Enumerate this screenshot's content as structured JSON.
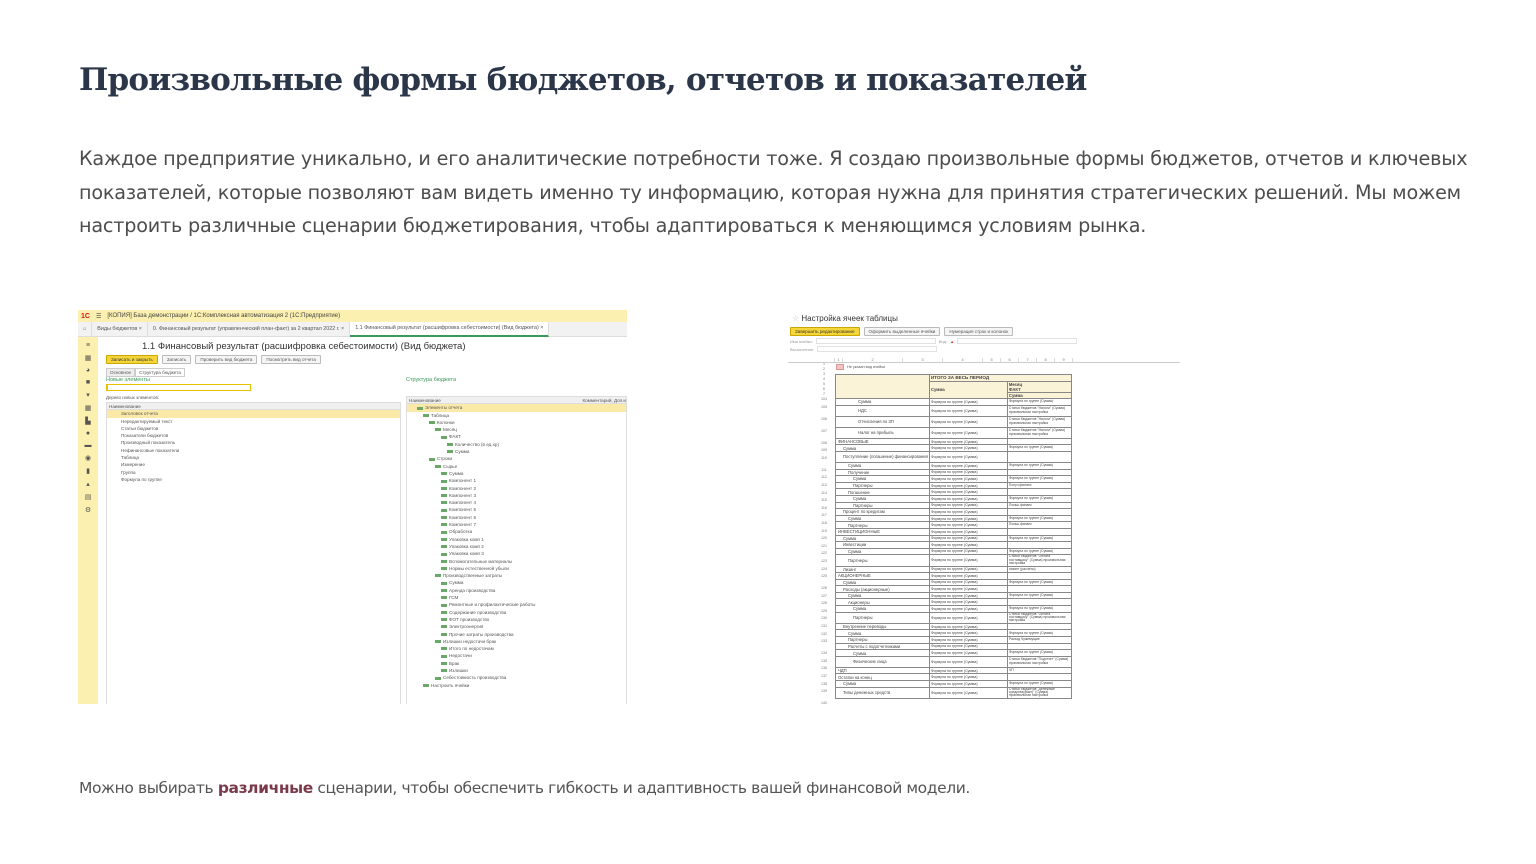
{
  "title": "Произвольные формы бюджетов, отчетов и показателей",
  "lead": "Каждое предприятие уникально, и его аналитические потребности тоже. Я создаю произвольные формы бюджетов, отчетов и ключевых показателей, которые позволяют вам видеть именно ту информацию, которая нужна для принятия стратегических решений. Мы можем настроить различные сценарии бюджетирования, чтобы адаптироваться к меняющимся условиям рынка.",
  "footer": {
    "before": "Можно выбирать ",
    "bold": "различные",
    "after": " сценарии, чтобы обеспечить гибкость и адаптивность вашей финансовой модели."
  },
  "colors": {
    "title": "#2b3649",
    "accent": "#7b3a4c",
    "app_yellow": "#fbf0b0",
    "button_yellow": "#f5d53a"
  },
  "shot1": {
    "logo": "1С",
    "window_title": "[КОПИЯ] База демонстрации / 1С:Комплексная автоматизация 2  (1С:Предприятие)",
    "tabs": [
      "Виды бюджетов ×",
      "0. Финансовый результат (управленческий план-факт) за 2 квартал 2022 г. ×",
      "1.1 Финансовый результат (расшифровка себестоимости) (Вид бюджета) ×"
    ],
    "heading": "1.1 Финансовый результат (расшифровка себестоимости) (Вид бюджета)",
    "buttons": [
      "Записать и закрыть",
      "Записать",
      "Проверить вид бюджета",
      "Посмотреть вид отчета"
    ],
    "subtabs": [
      "Основное",
      "Структура бюджета"
    ],
    "left_title": "Новые элементы",
    "search_value": "|",
    "left_caption": "Дерево новых элементов:",
    "left_header": "Наименование",
    "left_items": [
      "Заголовок отчета",
      "Нередактируемый текст",
      "Статьи бюджетов",
      "Показатели бюджетов",
      "Производный показатель",
      "Нефинансовые показатели",
      "Таблица",
      "Измерение",
      "Группа",
      "Формула по группе"
    ],
    "right_title": "Структура бюджета",
    "right_header": "Наименование",
    "right_header2": "Комментарий, Доп.и",
    "right_items": [
      [
        "Элементы отчета",
        1
      ],
      [
        "Таблица",
        2
      ],
      [
        "Колонки",
        3
      ],
      [
        "Месяц",
        4
      ],
      [
        "ФАКТ",
        5
      ],
      [
        "Количество (в ед.хр)",
        6
      ],
      [
        "Сумма",
        6
      ],
      [
        "Строки",
        3
      ],
      [
        "Сырье",
        4
      ],
      [
        "Сумма",
        5
      ],
      [
        "Компонент 1",
        5
      ],
      [
        "Компонент 2",
        5
      ],
      [
        "Компонент 3",
        5
      ],
      [
        "Компонент 4",
        5
      ],
      [
        "Компонент 5",
        5
      ],
      [
        "Компонент 6",
        5
      ],
      [
        "Компонент 7",
        5
      ],
      [
        "Обработка",
        5
      ],
      [
        "Упаковка комп 1",
        5
      ],
      [
        "Упаковка комп 2",
        5
      ],
      [
        "Упаковка комп 3",
        5
      ],
      [
        "Вспомогательные материалы",
        5
      ],
      [
        "Нормы естественной убыли",
        5
      ],
      [
        "Производственные затраты",
        4
      ],
      [
        "Сумма",
        5
      ],
      [
        "Аренда производства",
        5
      ],
      [
        "ГСМ",
        5
      ],
      [
        "Ремонтные и профилактические работы",
        5
      ],
      [
        "Содержание производства",
        5
      ],
      [
        "ФОТ производство",
        5
      ],
      [
        "Электроэнергия",
        5
      ],
      [
        "Прочие затраты производства",
        5
      ],
      [
        "Излишки недостачи брак",
        4
      ],
      [
        "Итого по недостачам",
        5
      ],
      [
        "Недостачи",
        5
      ],
      [
        "Брак",
        5
      ],
      [
        "Излишки",
        5
      ],
      [
        "Себестоимость производства",
        4
      ],
      [
        "Настроить ячейки",
        2
      ]
    ]
  },
  "shot2": {
    "heading": "Настройка ячеек таблицы",
    "buttons": [
      "Завершить редактирование",
      "Оформить выделенные ячейки",
      "Нумерация строк и колонок"
    ],
    "field_name": "Имя ячейки:",
    "field_kind": "Вид:",
    "field_calc": "Вычисление:",
    "col_numbers": [
      "1",
      "2",
      "3",
      "4",
      "5",
      "6",
      "7",
      "8",
      "9"
    ],
    "legend": "Не указан вид ячейки",
    "header_period": "ИТОГО ЗА ВЕСЬ ПЕРИОД",
    "header_sum": "Сумма",
    "header_month": "Месяц",
    "header_fact": "ФАКТ",
    "header_sum2": "Сумма",
    "rows": [
      [
        "104",
        "Сумма",
        4,
        "Формула по группе (Сумма)",
        "Формула по группе (Сумма)"
      ],
      [
        "105",
        "НДС",
        4,
        "Формула по группе (Сумма)",
        "Статья бюджетов \"Налоги\" (Сумма) произвольная настройка"
      ],
      [
        "106",
        "Отчисления по ЗП",
        4,
        "Формула по группе (Сумма)",
        "Статья бюджетов \"Налоги\" (Сумма) произвольная настройка"
      ],
      [
        "107",
        "Налог на прибыль",
        4,
        "Формула по группе (Сумма)",
        "Статья бюджетов \"Налоги\" (Сумма) произвольная настройка"
      ],
      [
        "108",
        "ФИНАНСОВЫЕ",
        0,
        "Формула по группе (Сумма)",
        ""
      ],
      [
        "109",
        "Сумма",
        1,
        "Формула по группе (Сумма)",
        "Формула по группе (Сумма)"
      ],
      [
        "110",
        "Поступление (погашение) финансирования",
        1,
        "Формула по группе (Сумма)",
        ""
      ],
      [
        "111",
        "Сумма",
        2,
        "Формула по группе (Сумма)",
        "Формула по группе (Сумма)"
      ],
      [
        "112",
        "Получение",
        2,
        "Формула по группе (Сумма)",
        ""
      ],
      [
        "113",
        "Сумма",
        3,
        "Формула по группе (Сумма)",
        "Формула по группе (Сумма)"
      ],
      [
        "114",
        "Партнеры",
        3,
        "Формула по группе (Сумма)",
        "Получ.финанс"
      ],
      [
        "115",
        "Погашение",
        2,
        "Формула по группе (Сумма)",
        ""
      ],
      [
        "116",
        "Сумма",
        3,
        "Формула по группе (Сумма)",
        "Формула по группе (Сумма)"
      ],
      [
        "117",
        "Партнеры",
        3,
        "Формула по группе (Сумма)",
        "Погаш.финанс"
      ],
      [
        "118",
        "Процент по кредитам",
        1,
        "Формула по группе (Сумма)",
        ""
      ],
      [
        "119",
        "Сумма",
        2,
        "Формула по группе (Сумма)",
        "Формула по группе (Сумма)"
      ],
      [
        "120",
        "Партнеры",
        2,
        "Формула по группе (Сумма)",
        "Погаш.финанс"
      ],
      [
        "121",
        "ИНВЕСТИЦИОННЫЕ",
        0,
        "Формула по группе (Сумма)",
        ""
      ],
      [
        "122",
        "Сумма",
        1,
        "Формула по группе (Сумма)",
        "Формула по группе (Сумма)"
      ],
      [
        "123",
        "Инвестиции",
        1,
        "Формула по группе (Сумма)",
        ""
      ],
      [
        "124",
        "Сумма",
        2,
        "Формула по группе (Сумма)",
        "Формула по группе (Сумма)"
      ],
      [
        "125",
        "Партнеры",
        2,
        "Формула по группе (Сумма)",
        "Статья бюджетов \"Оплата поставщику\" (Сумма) произвольная настройка"
      ],
      [
        "126",
        "Лизинг",
        1,
        "Формула по группе (Сумма)",
        "лизинг (расчеты)"
      ],
      [
        "127",
        "АКЦИОНЕРНЫЕ",
        0,
        "Формула по группе (Сумма)",
        ""
      ],
      [
        "128",
        "Сумма",
        1,
        "Формула по группе (Сумма)",
        "Формула по группе (Сумма)"
      ],
      [
        "129",
        "Расходы (акционерные)",
        1,
        "Формула по группе (Сумма)",
        ""
      ],
      [
        "130",
        "Сумма",
        2,
        "Формула по группе (Сумма)",
        "Формула по группе (Сумма)"
      ],
      [
        "131",
        "Акционеры",
        2,
        "Формула по группе (Сумма)",
        ""
      ],
      [
        "132",
        "Сумма",
        3,
        "Формула по группе (Сумма)",
        "Формула по группе (Сумма)"
      ],
      [
        "133",
        "Партнеры",
        3,
        "Формула по группе (Сумма)",
        "Статья бюджетов \"Оплата поставщику\" (Сумма) произвольная настройка"
      ],
      [
        "134",
        "Внутренние переводы",
        1,
        "Формула по группе (Сумма)",
        ""
      ],
      [
        "135",
        "Сумма",
        2,
        "Формула по группе (Сумма)",
        "Формула по группе (Сумма)"
      ],
      [
        "136",
        "Партнеры",
        2,
        "Формула по группе (Сумма)",
        "Расход Чужемущие"
      ],
      [
        "137",
        "Расчеты с подотчетниками",
        2,
        "Формула по группе (Сумма)",
        ""
      ],
      [
        "138",
        "Сумма",
        3,
        "Формула по группе (Сумма)",
        "Формула по группе (Сумма)"
      ],
      [
        "139",
        "Физические лица",
        3,
        "Формула по группе (Сумма)",
        "Статья бюджетов \"Подотчет\" (Сумма) произвольная настройка"
      ],
      [
        "140",
        "ЧДП",
        0,
        "Формула по группе (Сумма)",
        "ЧП"
      ],
      [
        "141",
        "Остатки на конец",
        0,
        "Формула по группе (Сумма)",
        ""
      ],
      [
        "142",
        "Сумма",
        1,
        "Формула по группе (Сумма)",
        "Формула по группе (Сумма)"
      ],
      [
        "143",
        "Типы денежных средств",
        1,
        "Формула по группе (Сумма)",
        "Статья бюджетов \"Денежные средства(факт)\" (Сумма) произвольная настройка"
      ]
    ],
    "last_row": "144"
  }
}
